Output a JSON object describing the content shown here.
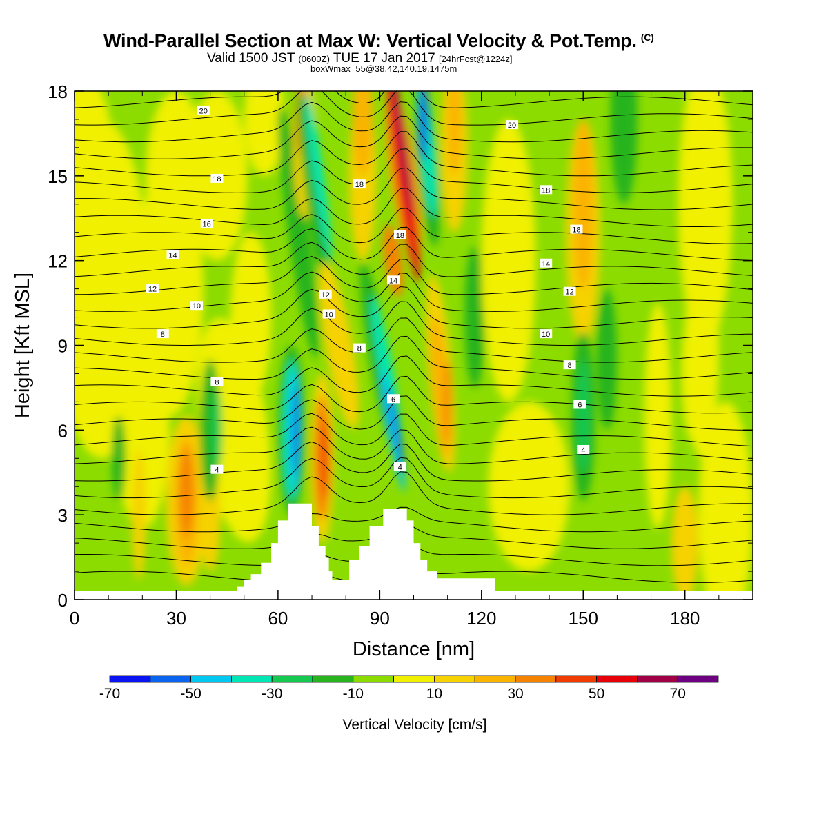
{
  "title": {
    "main": "Wind-Parallel Section at Max W: Vertical Velocity & Pot.Temp.",
    "copyright": "(C)",
    "valid_prefix": "Valid 1500 JST",
    "valid_zulu": "(0600Z)",
    "valid_date": "TUE 17 Jan 2017",
    "forecast": "[24hrFcst@1224z]",
    "boxwmax": "boxWmax=55@38.42,140.19,1475m"
  },
  "chart_data": {
    "type": "heatmap",
    "xlabel": "Distance [nm]",
    "ylabel": "Height [Kft MSL]",
    "xlim": [
      0,
      200
    ],
    "ylim": [
      0,
      18
    ],
    "xticks": [
      0,
      30,
      60,
      90,
      120,
      150,
      180
    ],
    "yticks": [
      0,
      3,
      6,
      9,
      12,
      15,
      18
    ],
    "colorbar": {
      "title": "Vertical Velocity [cm/s]",
      "levels": [
        -70,
        -60,
        -50,
        -40,
        -30,
        -20,
        -10,
        0,
        10,
        20,
        30,
        40,
        50,
        60,
        70,
        80
      ],
      "tick_labels": [
        "-70",
        "-50",
        "-30",
        "-10",
        "10",
        "30",
        "50",
        "70"
      ],
      "tick_values": [
        -70,
        -50,
        -30,
        -10,
        10,
        30,
        50,
        70
      ],
      "colors": [
        "#0a14f0",
        "#0a64f0",
        "#00c8f0",
        "#00e6b4",
        "#14c850",
        "#28b41e",
        "#8cdc00",
        "#f0f000",
        "#f5d200",
        "#fab400",
        "#f58200",
        "#f03c00",
        "#e6000a",
        "#a00046",
        "#6e0082"
      ]
    },
    "contour_labels": [
      {
        "text": "20",
        "x": 38,
        "y": 17.3
      },
      {
        "text": "20",
        "x": 129,
        "y": 16.8
      },
      {
        "text": "18",
        "x": 42,
        "y": 14.9
      },
      {
        "text": "18",
        "x": 84,
        "y": 14.7
      },
      {
        "text": "18",
        "x": 139,
        "y": 14.5
      },
      {
        "text": "18",
        "x": 96,
        "y": 12.9
      },
      {
        "text": "18",
        "x": 148,
        "y": 13.1
      },
      {
        "text": "16",
        "x": 39,
        "y": 13.3
      },
      {
        "text": "14",
        "x": 29,
        "y": 12.2
      },
      {
        "text": "14",
        "x": 94,
        "y": 11.3
      },
      {
        "text": "14",
        "x": 139,
        "y": 11.9
      },
      {
        "text": "12",
        "x": 23,
        "y": 11.0
      },
      {
        "text": "12",
        "x": 74,
        "y": 10.8
      },
      {
        "text": "12",
        "x": 146,
        "y": 10.9
      },
      {
        "text": "10",
        "x": 36,
        "y": 10.4
      },
      {
        "text": "10",
        "x": 75,
        "y": 10.1
      },
      {
        "text": "10",
        "x": 139,
        "y": 9.4
      },
      {
        "text": "8",
        "x": 26,
        "y": 9.4
      },
      {
        "text": "8",
        "x": 84,
        "y": 8.9
      },
      {
        "text": "8",
        "x": 146,
        "y": 8.3
      },
      {
        "text": "8",
        "x": 42,
        "y": 7.7
      },
      {
        "text": "6",
        "x": 94,
        "y": 7.1
      },
      {
        "text": "6",
        "x": 149,
        "y": 6.9
      },
      {
        "text": "4",
        "x": 42,
        "y": 4.6
      },
      {
        "text": "4",
        "x": 96,
        "y": 4.7
      },
      {
        "text": "4",
        "x": 150,
        "y": 5.3
      }
    ]
  }
}
